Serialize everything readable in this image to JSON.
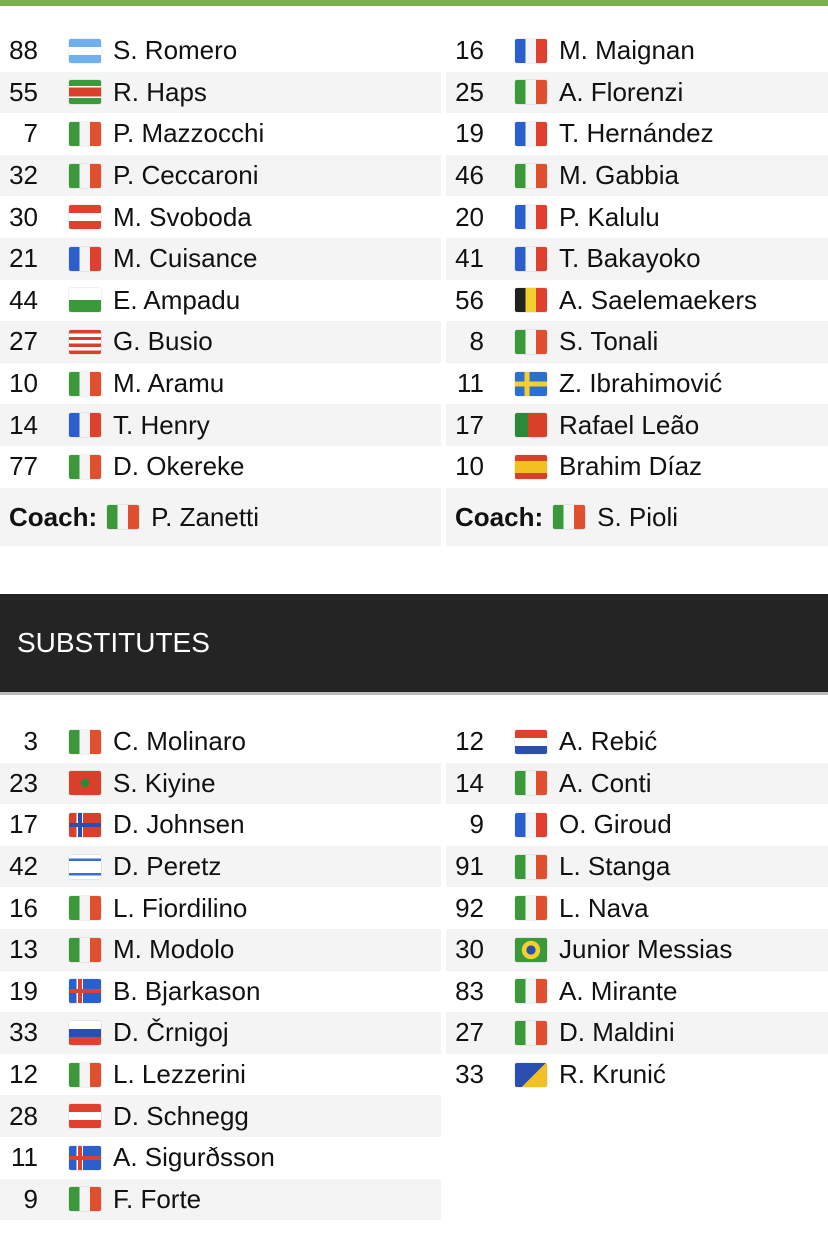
{
  "flag_styles": {
    "IT": "linear-gradient(90deg,#3a9a3a 33%,#f4f4f4 33% 66%,#e0502e 66%)",
    "FR": "linear-gradient(90deg,#2b5fd0 33%,#f4f4f4 33% 66%,#e0402e 66%)",
    "BE": "linear-gradient(90deg,#222 33%,#f2d030 33% 66%,#e0402e 66%)",
    "AR": "linear-gradient(180deg,#6fb0f0 33%,#fff 33% 66%,#6fb0f0 66%)",
    "SR": "linear-gradient(180deg,#3a9a3a 25%,#fff 25% 32%,#d8402a 32% 68%,#fff 68% 75%,#3a9a3a 75%)",
    "AT": "linear-gradient(180deg,#e0402e 33%,#fff 33% 66%,#e0402e 66%)",
    "HR": "linear-gradient(180deg,#e0402e 33%,#fff 33% 66%,#2b4fb0 66%)",
    "SI": "linear-gradient(180deg,#fff 33%,#2b4fb0 33% 66%,#e0402e 66%)",
    "WLS": "linear-gradient(180deg,#fff 50%,#3a9a3a 50%)",
    "US": "repeating-linear-gradient(180deg,#d8402a 0 3.4px,#fff 3.4px 6.8px)",
    "SE": "linear-gradient(90deg,transparent 30%,#f2d030 30% 45%,transparent 45%),linear-gradient(180deg,#2b6fd0 40%,#f2d030 40% 60%,#2b6fd0 60%)",
    "NO": "linear-gradient(90deg,transparent 28%,#2b4fb0 28% 40%,transparent 40%),linear-gradient(180deg,transparent 42%,#2b4fb0 42% 58%,transparent 58%),linear-gradient(90deg,#d8402a 24%,#fff 24% 44%,#d8402a 44%)",
    "IS": "linear-gradient(90deg,transparent 28%,#e0402e 28% 40%,transparent 40%),linear-gradient(180deg,transparent 42%,#e0402e 42% 58%,transparent 58%),linear-gradient(90deg,#2b5fd0 24%,#fff 24% 44%,#2b5fd0 44%)",
    "IL": "linear-gradient(180deg,#fff 15%,#3a6fd0 15% 25%,#fff 25% 75%,#3a6fd0 75% 85%,#fff 85%)",
    "MA": "radial-gradient(circle,#2a8a3a 20%,#d8402a 22%)",
    "PT": "linear-gradient(90deg,#2a8a3a 40%,#d8402a 40%)",
    "ES": "linear-gradient(180deg,#d8402a 25%,#f2c020 25% 75%,#d8402a 75%)",
    "BR": "radial-gradient(circle,#2b4fb0 22%,#f2d030 24% 45%,#3a9a3a 47%)",
    "BA": "linear-gradient(135deg,#2b4fb0 55%,#f2c020 55%)"
  },
  "starters": {
    "home": [
      {
        "num": "88",
        "flag": "AR",
        "name": "S. Romero"
      },
      {
        "num": "55",
        "flag": "SR",
        "name": "R. Haps"
      },
      {
        "num": "7",
        "flag": "IT",
        "name": "P. Mazzocchi"
      },
      {
        "num": "32",
        "flag": "IT",
        "name": "P. Ceccaroni"
      },
      {
        "num": "30",
        "flag": "AT",
        "name": "M. Svoboda"
      },
      {
        "num": "21",
        "flag": "FR",
        "name": "M. Cuisance"
      },
      {
        "num": "44",
        "flag": "WLS",
        "name": "E. Ampadu"
      },
      {
        "num": "27",
        "flag": "US",
        "name": "G. Busio"
      },
      {
        "num": "10",
        "flag": "IT",
        "name": "M. Aramu"
      },
      {
        "num": "14",
        "flag": "FR",
        "name": "T. Henry"
      },
      {
        "num": "77",
        "flag": "IT",
        "name": "D. Okereke"
      }
    ],
    "away": [
      {
        "num": "16",
        "flag": "FR",
        "name": "M. Maignan"
      },
      {
        "num": "25",
        "flag": "IT",
        "name": "A. Florenzi"
      },
      {
        "num": "19",
        "flag": "FR",
        "name": "T. Hernández"
      },
      {
        "num": "46",
        "flag": "IT",
        "name": "M. Gabbia"
      },
      {
        "num": "20",
        "flag": "FR",
        "name": "P. Kalulu"
      },
      {
        "num": "41",
        "flag": "FR",
        "name": "T. Bakayoko"
      },
      {
        "num": "56",
        "flag": "BE",
        "name": "A. Saelemaekers"
      },
      {
        "num": "8",
        "flag": "IT",
        "name": "S. Tonali"
      },
      {
        "num": "11",
        "flag": "SE",
        "name": "Z. Ibrahimović"
      },
      {
        "num": "17",
        "flag": "PT",
        "name": "Rafael Leão"
      },
      {
        "num": "10",
        "flag": "ES",
        "name": "Brahim Díaz"
      }
    ]
  },
  "coaches": {
    "label": "Coach:",
    "home": {
      "flag": "IT",
      "name": "P. Zanetti"
    },
    "away": {
      "flag": "IT",
      "name": "S. Pioli"
    }
  },
  "substitutes_title": "SUBSTITUTES",
  "substitutes": {
    "home": [
      {
        "num": "3",
        "flag": "IT",
        "name": "C. Molinaro"
      },
      {
        "num": "23",
        "flag": "MA",
        "name": "S. Kiyine"
      },
      {
        "num": "17",
        "flag": "NO",
        "name": "D. Johnsen"
      },
      {
        "num": "42",
        "flag": "IL",
        "name": "D. Peretz"
      },
      {
        "num": "16",
        "flag": "IT",
        "name": "L. Fiordilino"
      },
      {
        "num": "13",
        "flag": "IT",
        "name": "M. Modolo"
      },
      {
        "num": "19",
        "flag": "IS",
        "name": "B. Bjarkason"
      },
      {
        "num": "33",
        "flag": "SI",
        "name": "D. Črnigoj"
      },
      {
        "num": "12",
        "flag": "IT",
        "name": "L. Lezzerini"
      },
      {
        "num": "28",
        "flag": "AT",
        "name": "D. Schnegg"
      },
      {
        "num": "11",
        "flag": "IS",
        "name": "A. Sigurðsson"
      },
      {
        "num": "9",
        "flag": "IT",
        "name": "F. Forte"
      }
    ],
    "away": [
      {
        "num": "12",
        "flag": "HR",
        "name": "A. Rebić"
      },
      {
        "num": "14",
        "flag": "IT",
        "name": "A. Conti"
      },
      {
        "num": "9",
        "flag": "FR",
        "name": "O. Giroud"
      },
      {
        "num": "91",
        "flag": "IT",
        "name": "L. Stanga"
      },
      {
        "num": "92",
        "flag": "IT",
        "name": "L. Nava"
      },
      {
        "num": "30",
        "flag": "BR",
        "name": "Junior Messias"
      },
      {
        "num": "83",
        "flag": "IT",
        "name": "A. Mirante"
      },
      {
        "num": "27",
        "flag": "IT",
        "name": "D. Maldini"
      },
      {
        "num": "33",
        "flag": "BA",
        "name": "R. Krunić"
      }
    ]
  }
}
